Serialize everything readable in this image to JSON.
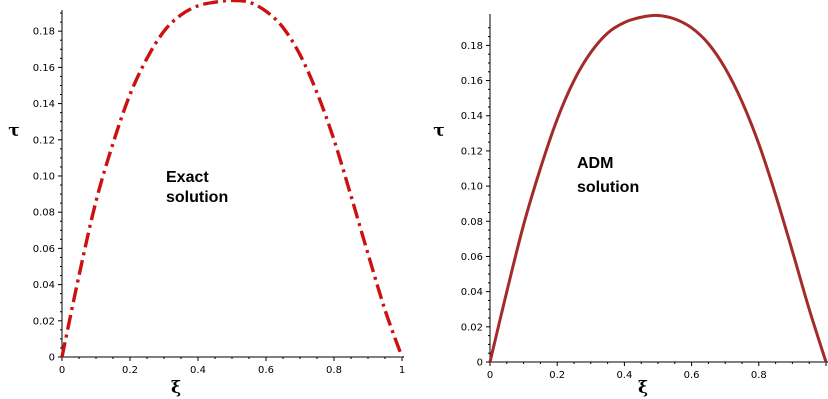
{
  "chart_data": [
    {
      "type": "line",
      "xlabel": "ξ",
      "ylabel": "τ",
      "xlim": [
        0,
        1
      ],
      "ylim": [
        0,
        0.195
      ],
      "x_ticks": [
        "0",
        "0.2",
        "0.4",
        "0.6",
        "0.8",
        "1"
      ],
      "y_ticks": [
        "0",
        "0.02",
        "0.04",
        "0.06",
        "0.08",
        "0.10",
        "0.12",
        "0.14",
        "0.16",
        "0.18"
      ],
      "annotation": [
        "Exact",
        "solution"
      ],
      "line_style": "dash-dot",
      "color": "#cc1111",
      "series": [
        {
          "x": [
            0,
            0.05,
            0.1,
            0.15,
            0.2,
            0.25,
            0.3,
            0.35,
            0.4,
            0.45,
            0.5,
            0.55,
            0.6,
            0.65,
            0.7,
            0.75,
            0.8,
            0.85,
            0.9,
            0.95,
            1
          ],
          "values": [
            0,
            0.045,
            0.086,
            0.118,
            0.145,
            0.165,
            0.18,
            0.189,
            0.194,
            0.196,
            0.197,
            0.196,
            0.191,
            0.182,
            0.167,
            0.146,
            0.12,
            0.089,
            0.057,
            0.026,
            0
          ]
        }
      ]
    },
    {
      "type": "line",
      "xlabel": "ξ",
      "ylabel": "τ",
      "xlim": [
        0,
        1
      ],
      "ylim": [
        0,
        0.195
      ],
      "x_ticks": [
        "0",
        "0.2",
        "0.4",
        "0.6",
        "0.8"
      ],
      "y_ticks": [
        "0",
        "0.02",
        "0.04",
        "0.06",
        "0.08",
        "0.10",
        "0.12",
        "0.14",
        "0.16",
        "0.18"
      ],
      "annotation": [
        "ADM",
        "solution"
      ],
      "line_style": "solid",
      "color": "#a52a2a",
      "series": [
        {
          "x": [
            0,
            0.05,
            0.1,
            0.15,
            0.2,
            0.25,
            0.3,
            0.35,
            0.4,
            0.45,
            0.5,
            0.55,
            0.6,
            0.65,
            0.7,
            0.75,
            0.8,
            0.85,
            0.9,
            0.95,
            1
          ],
          "values": [
            0,
            0.04,
            0.078,
            0.11,
            0.138,
            0.16,
            0.176,
            0.187,
            0.193,
            0.196,
            0.197,
            0.195,
            0.19,
            0.181,
            0.167,
            0.148,
            0.124,
            0.095,
            0.063,
            0.03,
            0
          ]
        }
      ]
    }
  ]
}
